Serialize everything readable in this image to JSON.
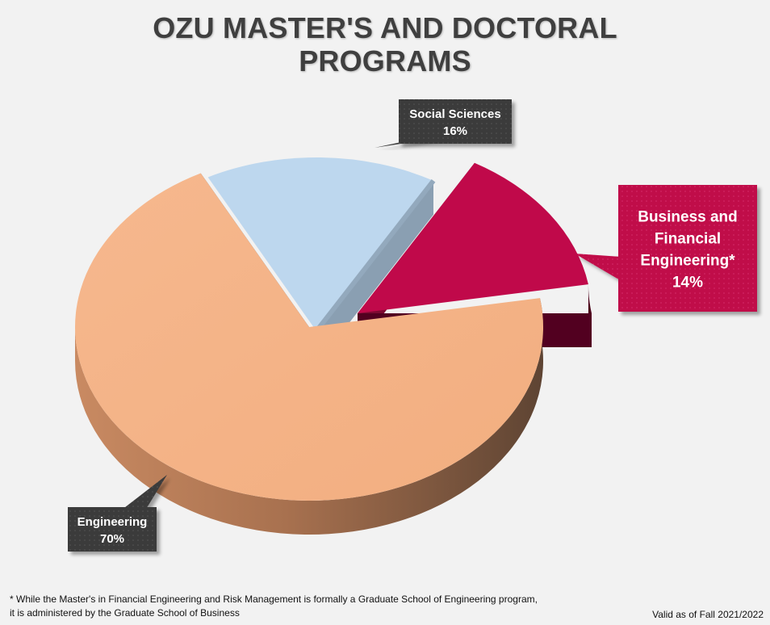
{
  "title_lines": [
    "OZU MASTER'S AND DOCTORAL",
    "PROGRAMS"
  ],
  "chart_data": {
    "type": "pie",
    "title": "OZU MASTER'S AND DOCTORAL PROGRAMS",
    "slices": [
      {
        "label": "Engineering",
        "value": 70,
        "value_label": "70%",
        "color": "#f4b183"
      },
      {
        "label": "Social Sciences",
        "value": 16,
        "value_label": "16%",
        "color": "#bdd7ee"
      },
      {
        "label": "Business and Financial Engineering*",
        "value": 14,
        "value_label": "14%",
        "color": "#c0094a"
      }
    ],
    "style": "3d-exploded",
    "callouts": {
      "engineering": [
        "Engineering",
        "70%"
      ],
      "social": [
        "Social Sciences",
        "16%"
      ],
      "business": [
        "Business and",
        "Financial",
        "Engineering*",
        "14%"
      ]
    }
  },
  "footnote_lines": [
    "* While the Master's in Financial Engineering and Risk Management is formally a Graduate School of Engineering program,",
    "it is administered by the Graduate School of Business"
  ],
  "validity": "Valid as of Fall  2021/2022"
}
